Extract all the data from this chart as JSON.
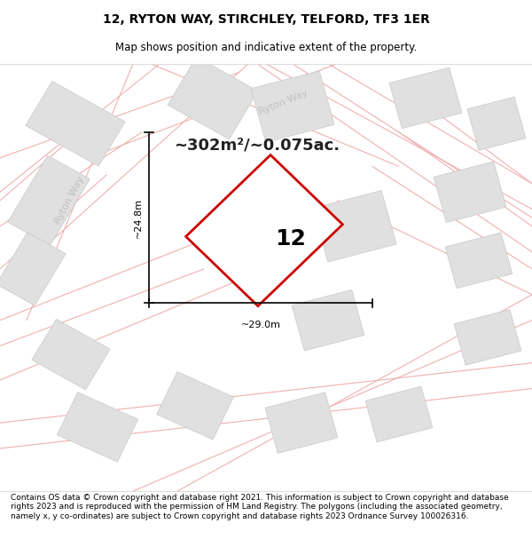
{
  "title": "12, RYTON WAY, STIRCHLEY, TELFORD, TF3 1ER",
  "subtitle": "Map shows position and indicative extent of the property.",
  "footer": "Contains OS data © Crown copyright and database right 2021. This information is subject to Crown copyright and database rights 2023 and is reproduced with the permission of HM Land Registry. The polygons (including the associated geometry, namely x, y co-ordinates) are subject to Crown copyright and database rights 2023 Ordnance Survey 100026316.",
  "area_text": "~302m²/~0.075ac.",
  "label_12": "12",
  "dim_width": "~29.0m",
  "dim_height": "~24.8m",
  "map_bg": "#f5f5f5",
  "plot_outline_color": "#cc0000",
  "neighbor_fill": "#e0e0e0",
  "neighbor_stroke": "#c8c8c8",
  "road_line_color": "#f0b0b0",
  "road_label_color": "#bbbbbb",
  "title_fontsize": 10,
  "subtitle_fontsize": 8.5,
  "footer_fontsize": 6.5
}
